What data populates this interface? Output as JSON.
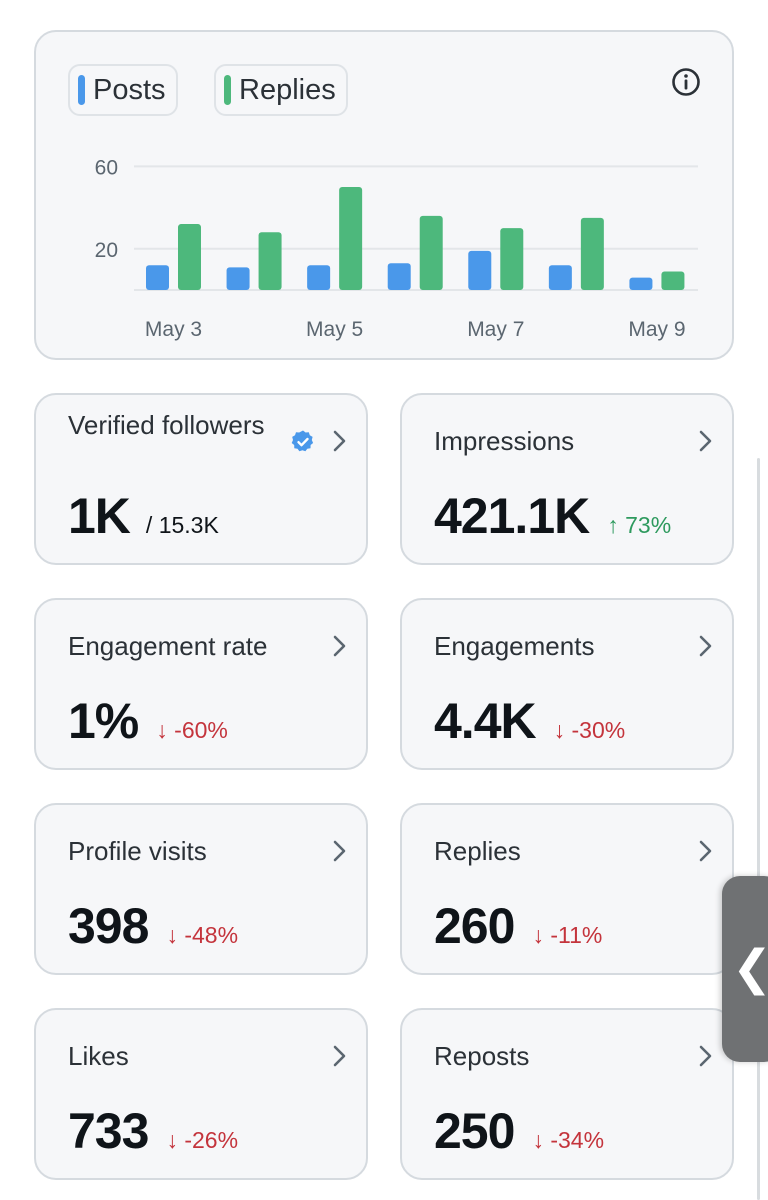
{
  "colors": {
    "posts": "#4a98ea",
    "replies": "#4db87c",
    "down": "#c4343c",
    "up": "#2e9a5e"
  },
  "chart": {
    "legend": [
      {
        "label": "Posts",
        "color": "#4a98ea"
      },
      {
        "label": "Replies",
        "color": "#4db87c"
      }
    ],
    "info_icon": "info-icon"
  },
  "chart_data": {
    "type": "bar",
    "categories": [
      "May 3",
      "May 4",
      "May 5",
      "May 6",
      "May 7",
      "May 8",
      "May 9"
    ],
    "tick_labels_x": [
      "May 3",
      "May 5",
      "May 7",
      "May 9"
    ],
    "y_ticks": [
      20,
      60
    ],
    "ylim": [
      0,
      66
    ],
    "grid": true,
    "legend_placement": "top-left",
    "series": [
      {
        "name": "Posts",
        "color": "#4a98ea",
        "values": [
          12,
          11,
          12,
          13,
          19,
          12,
          6
        ]
      },
      {
        "name": "Replies",
        "color": "#4db87c",
        "values": [
          32,
          28,
          50,
          36,
          30,
          35,
          9
        ]
      }
    ]
  },
  "stats": [
    {
      "title": "Verified followers",
      "value": "1K",
      "total": "/ 15.3K",
      "verified_icon": true
    },
    {
      "title": "Impressions",
      "value": "421.1K",
      "change": "↑ 73%",
      "direction": "up"
    },
    {
      "title": "Engagement rate",
      "value": "1%",
      "change": "↓ -60%",
      "direction": "down"
    },
    {
      "title": "Engagements",
      "value": "4.4K",
      "change": "↓ -30%",
      "direction": "down"
    },
    {
      "title": "Profile visits",
      "value": "398",
      "change": "↓ -48%",
      "direction": "down"
    },
    {
      "title": "Replies",
      "value": "260",
      "change": "↓ -11%",
      "direction": "down"
    },
    {
      "title": "Likes",
      "value": "733",
      "change": "↓ -26%",
      "direction": "down"
    },
    {
      "title": "Reposts",
      "value": "250",
      "change": "↓ -34%",
      "direction": "down"
    }
  ],
  "side_handle": {
    "glyph": "❮"
  }
}
